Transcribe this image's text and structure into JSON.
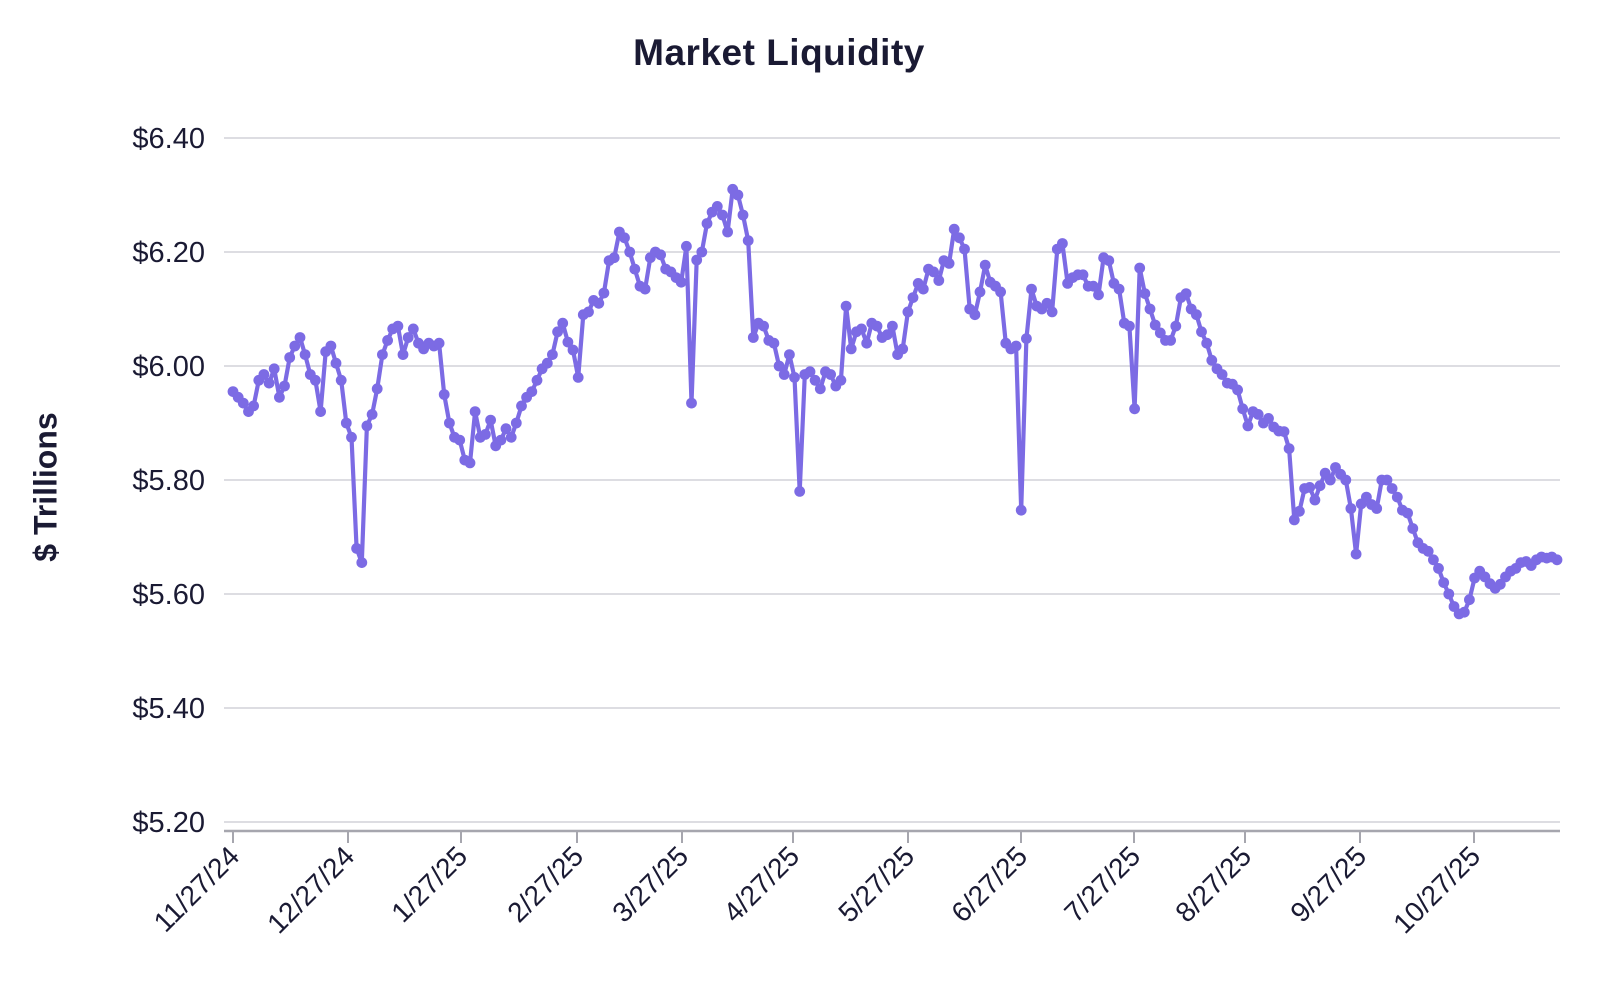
{
  "chart_data": {
    "type": "line",
    "title": "Market Liquidity",
    "ylabel": "$ Trillions",
    "xlabel": "",
    "ylim": [
      5.2,
      6.4
    ],
    "grid": true,
    "legend": false,
    "marker": "circle",
    "y_ticks": [
      {
        "value": 6.4,
        "label": "$6.40"
      },
      {
        "value": 6.2,
        "label": "$6.20"
      },
      {
        "value": 6.0,
        "label": "$6.00"
      },
      {
        "value": 5.8,
        "label": "$5.80"
      },
      {
        "value": 5.6,
        "label": "$5.60"
      },
      {
        "value": 5.4,
        "label": "$5.40"
      },
      {
        "value": 5.2,
        "label": "$5.20"
      }
    ],
    "x_tick_labels": [
      "11/27/24",
      "12/27/24",
      "1/27/25",
      "2/27/25",
      "3/27/25",
      "4/27/25",
      "5/27/25",
      "6/27/25",
      "7/27/25",
      "8/27/25",
      "9/27/25",
      "10/27/25"
    ],
    "x_frequency": "business-daily",
    "x_start_label": "11/27/24",
    "colors": {
      "line": "#7C6BE4",
      "marker": "#7C6BE4",
      "text": "#1a1a33",
      "grid": "#d2d2d9",
      "axis": "#a6a6ae",
      "background": "#ffffff"
    },
    "series": [
      {
        "name": "Market Liquidity ($ Trillions)",
        "values": [
          5.955,
          5.945,
          5.935,
          5.92,
          5.93,
          5.975,
          5.985,
          5.97,
          5.995,
          5.945,
          5.965,
          6.015,
          6.035,
          6.05,
          6.02,
          5.985,
          5.975,
          5.92,
          6.025,
          6.035,
          6.005,
          5.975,
          5.9,
          5.875,
          5.68,
          5.655,
          5.895,
          5.915,
          5.96,
          6.02,
          6.045,
          6.065,
          6.07,
          6.02,
          6.05,
          6.065,
          6.04,
          6.03,
          6.04,
          6.035,
          6.04,
          5.95,
          5.9,
          5.875,
          5.87,
          5.835,
          5.83,
          5.92,
          5.875,
          5.88,
          5.905,
          5.86,
          5.87,
          5.89,
          5.875,
          5.9,
          5.93,
          5.945,
          5.955,
          5.975,
          5.995,
          6.005,
          6.02,
          6.06,
          6.075,
          6.042,
          6.028,
          5.98,
          6.09,
          6.095,
          6.115,
          6.11,
          6.128,
          6.185,
          6.19,
          6.235,
          6.225,
          6.2,
          6.17,
          6.14,
          6.135,
          6.19,
          6.2,
          6.195,
          6.17,
          6.165,
          6.155,
          6.147,
          6.21,
          5.935,
          6.186,
          6.2,
          6.25,
          6.27,
          6.28,
          6.265,
          6.235,
          6.31,
          6.3,
          6.265,
          6.22,
          6.05,
          6.075,
          6.07,
          6.045,
          6.04,
          6.0,
          5.985,
          6.02,
          5.98,
          5.78,
          5.985,
          5.99,
          5.975,
          5.96,
          5.99,
          5.985,
          5.965,
          5.975,
          6.105,
          6.03,
          6.06,
          6.065,
          6.04,
          6.075,
          6.07,
          6.05,
          6.055,
          6.07,
          6.02,
          6.03,
          6.095,
          6.12,
          6.145,
          6.135,
          6.17,
          6.165,
          6.15,
          6.185,
          6.18,
          6.24,
          6.225,
          6.205,
          6.1,
          6.09,
          6.13,
          6.177,
          6.147,
          6.14,
          6.13,
          6.04,
          6.03,
          6.035,
          5.747,
          6.048,
          6.135,
          6.105,
          6.1,
          6.11,
          6.095,
          6.205,
          6.215,
          6.145,
          6.155,
          6.16,
          6.16,
          6.14,
          6.14,
          6.125,
          6.19,
          6.185,
          6.145,
          6.135,
          6.075,
          6.07,
          5.925,
          6.172,
          6.127,
          6.1,
          6.072,
          6.058,
          6.045,
          6.045,
          6.07,
          6.12,
          6.127,
          6.1,
          6.09,
          6.06,
          6.04,
          6.01,
          5.995,
          5.985,
          5.97,
          5.968,
          5.958,
          5.925,
          5.895,
          5.92,
          5.915,
          5.9,
          5.908,
          5.893,
          5.886,
          5.885,
          5.855,
          5.73,
          5.745,
          5.785,
          5.787,
          5.765,
          5.79,
          5.812,
          5.8,
          5.822,
          5.81,
          5.8,
          5.75,
          5.67,
          5.758,
          5.77,
          5.757,
          5.75,
          5.8,
          5.8,
          5.785,
          5.77,
          5.747,
          5.742,
          5.715,
          5.69,
          5.68,
          5.675,
          5.66,
          5.645,
          5.62,
          5.6,
          5.578,
          5.565,
          5.568,
          5.59,
          5.628,
          5.64,
          5.63,
          5.618,
          5.61,
          5.617,
          5.63,
          5.64,
          5.645,
          5.655,
          5.657,
          5.65,
          5.66,
          5.665,
          5.663,
          5.665,
          5.66
        ]
      }
    ]
  }
}
